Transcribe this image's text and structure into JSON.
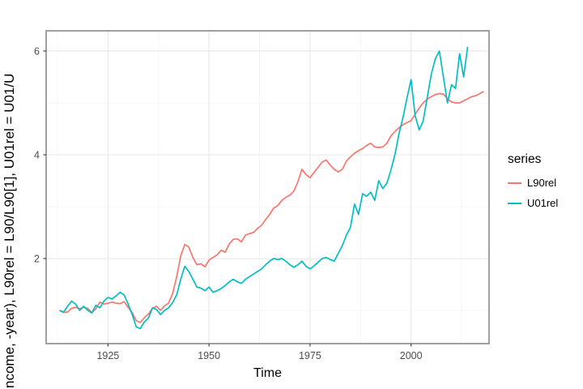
{
  "figure": {
    "x_axis_title": "Time",
    "y_axis_title_visible": "ncome, -year), L90rel = L90/L90[1], U01rel = U01/U"
  },
  "legend": {
    "title": "series",
    "entries": [
      {
        "label": "L90rel",
        "color": "#F8766D"
      },
      {
        "label": "U01rel",
        "color": "#00BFC4"
      }
    ]
  },
  "style_colors": {
    "panel_border": "#969696",
    "grid_major": "#e8e8e8",
    "grid_minor": "#f4f4f4",
    "tick_mark": "#333333",
    "tick_text": "#4d4d4d"
  },
  "chart_data": {
    "type": "line",
    "title": "",
    "xlabel": "Time",
    "ylabel": "ncome, -year), L90rel = L90/L90[1], U01rel = U01/U",
    "xlim": [
      1909.7,
      2019.3
    ],
    "ylim": [
      0.36,
      6.39
    ],
    "x_ticks": [
      1925,
      1950,
      1975,
      2000
    ],
    "x_minor_breaks": [
      1912.5,
      1937.5,
      1962.5,
      1987.5,
      2012.5
    ],
    "y_ticks": [
      2,
      4,
      6
    ],
    "y_minor_breaks": [
      1,
      3,
      5
    ],
    "grid": "major+minor",
    "legend_position": "right",
    "legend_title": "series",
    "series": [
      {
        "name": "L90rel",
        "color": "#F8766D",
        "x_start": 1913,
        "x_step": 1,
        "values": [
          1.0,
          0.96,
          0.97,
          1.04,
          1.06,
          1.03,
          1.06,
          1.04,
          0.96,
          1.03,
          1.16,
          1.12,
          1.14,
          1.16,
          1.14,
          1.13,
          1.17,
          1.06,
          0.96,
          0.8,
          0.77,
          0.86,
          0.93,
          1.04,
          1.08,
          1.0,
          1.09,
          1.14,
          1.32,
          1.65,
          2.05,
          2.27,
          2.22,
          2.02,
          1.88,
          1.9,
          1.84,
          1.97,
          2.02,
          2.07,
          2.16,
          2.12,
          2.28,
          2.37,
          2.38,
          2.32,
          2.45,
          2.48,
          2.5,
          2.58,
          2.64,
          2.75,
          2.85,
          2.97,
          3.02,
          3.12,
          3.18,
          3.22,
          3.3,
          3.48,
          3.72,
          3.62,
          3.56,
          3.66,
          3.76,
          3.86,
          3.9,
          3.8,
          3.72,
          3.67,
          3.72,
          3.88,
          3.96,
          4.03,
          4.08,
          4.12,
          4.18,
          4.22,
          4.15,
          4.14,
          4.15,
          4.22,
          4.36,
          4.45,
          4.52,
          4.58,
          4.62,
          4.66,
          4.78,
          4.9,
          5.0,
          5.07,
          5.12,
          5.16,
          5.18,
          5.17,
          5.08,
          5.02,
          5.0,
          5.0,
          5.04,
          5.08,
          5.12,
          5.14,
          5.18,
          5.22
        ]
      },
      {
        "name": "U01rel",
        "color": "#00BFC4",
        "x_start": 1913,
        "x_step": 1,
        "values": [
          1.0,
          0.97,
          1.08,
          1.18,
          1.12,
          1.0,
          1.08,
          1.0,
          0.95,
          1.1,
          1.05,
          1.18,
          1.25,
          1.22,
          1.28,
          1.35,
          1.3,
          1.12,
          0.92,
          0.68,
          0.65,
          0.78,
          0.85,
          1.05,
          1.02,
          0.92,
          1.0,
          1.05,
          1.15,
          1.3,
          1.6,
          1.85,
          1.75,
          1.6,
          1.45,
          1.43,
          1.38,
          1.45,
          1.35,
          1.38,
          1.42,
          1.48,
          1.55,
          1.6,
          1.55,
          1.52,
          1.6,
          1.65,
          1.7,
          1.75,
          1.8,
          1.88,
          1.95,
          2.0,
          1.98,
          2.0,
          1.95,
          1.88,
          1.83,
          1.88,
          1.95,
          1.85,
          1.8,
          1.86,
          1.93,
          2.0,
          2.02,
          1.98,
          1.95,
          2.1,
          2.25,
          2.45,
          2.6,
          3.05,
          2.85,
          3.25,
          3.2,
          3.28,
          3.12,
          3.5,
          3.35,
          3.45,
          3.7,
          4.0,
          4.4,
          4.72,
          5.1,
          5.45,
          4.75,
          4.48,
          4.65,
          5.1,
          5.55,
          5.85,
          6.0,
          5.5,
          5.0,
          5.35,
          5.28,
          5.95,
          5.5,
          6.08
        ]
      }
    ]
  }
}
